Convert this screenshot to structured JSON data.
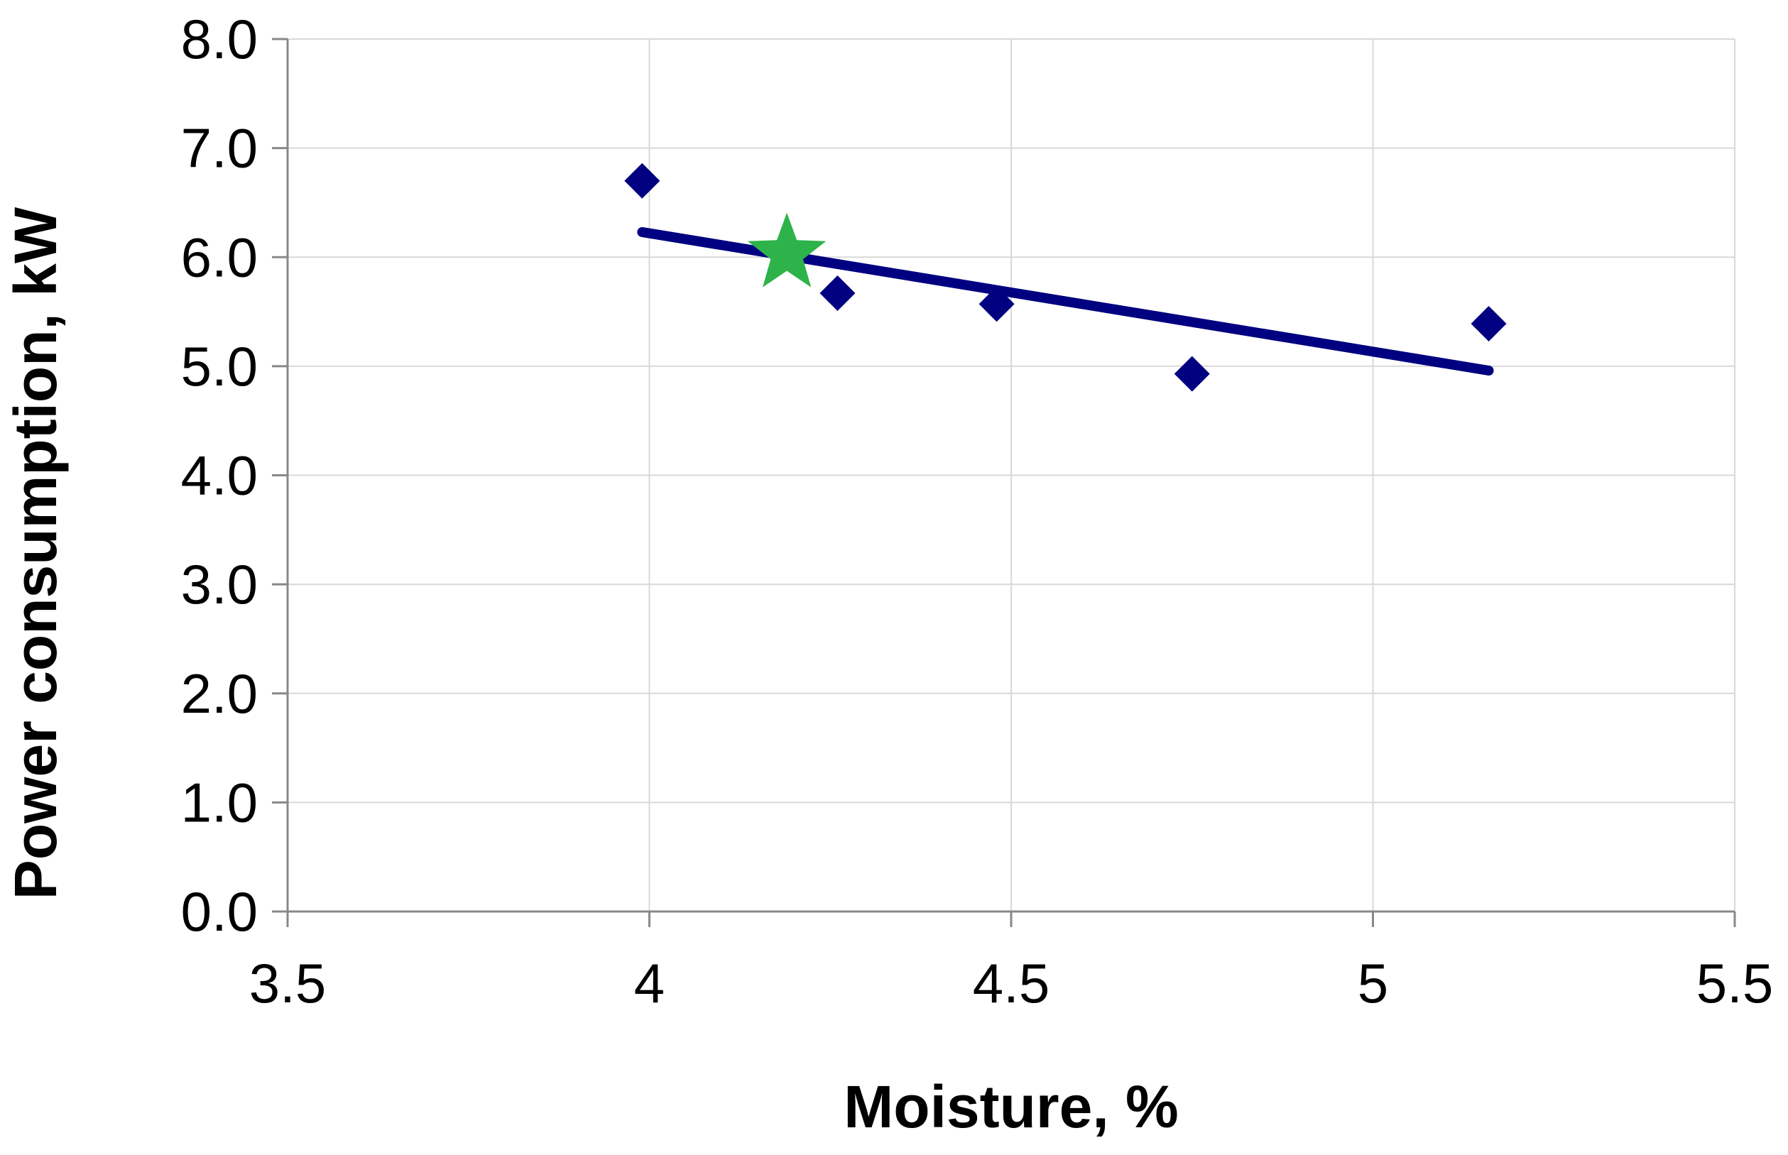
{
  "chart_data": {
    "type": "scatter",
    "title": "",
    "xlabel": "Moisture, %",
    "ylabel": "Power consumption, kW",
    "xlim": [
      3.5,
      5.5
    ],
    "ylim": [
      0.0,
      8.0
    ],
    "x_ticks": [
      "3.5",
      "4",
      "4.5",
      "5",
      "5.5"
    ],
    "x_tick_values": [
      3.5,
      4.0,
      4.5,
      5.0,
      5.5
    ],
    "y_ticks": [
      "0.0",
      "1.0",
      "2.0",
      "3.0",
      "4.0",
      "5.0",
      "6.0",
      "7.0",
      "8.0"
    ],
    "y_tick_values": [
      0,
      1,
      2,
      3,
      4,
      5,
      6,
      7,
      8
    ],
    "grid": true,
    "legend": "none",
    "series": [
      {
        "marker": "diamond",
        "color": "#000080",
        "x": [
          3.99,
          4.26,
          4.48,
          4.75,
          5.16
        ],
        "y": [
          6.7,
          5.67,
          5.57,
          4.93,
          5.39
        ]
      }
    ],
    "highlight_point": {
      "marker": "star",
      "color": "#2db34a",
      "x": 4.19,
      "y": 6.03
    },
    "trendline": {
      "type": "linear",
      "color": "#000080",
      "x": [
        3.99,
        5.16
      ],
      "y": [
        6.23,
        4.96
      ]
    },
    "colors": {
      "grid": "#d9d9d9",
      "axis": "#888888"
    }
  }
}
